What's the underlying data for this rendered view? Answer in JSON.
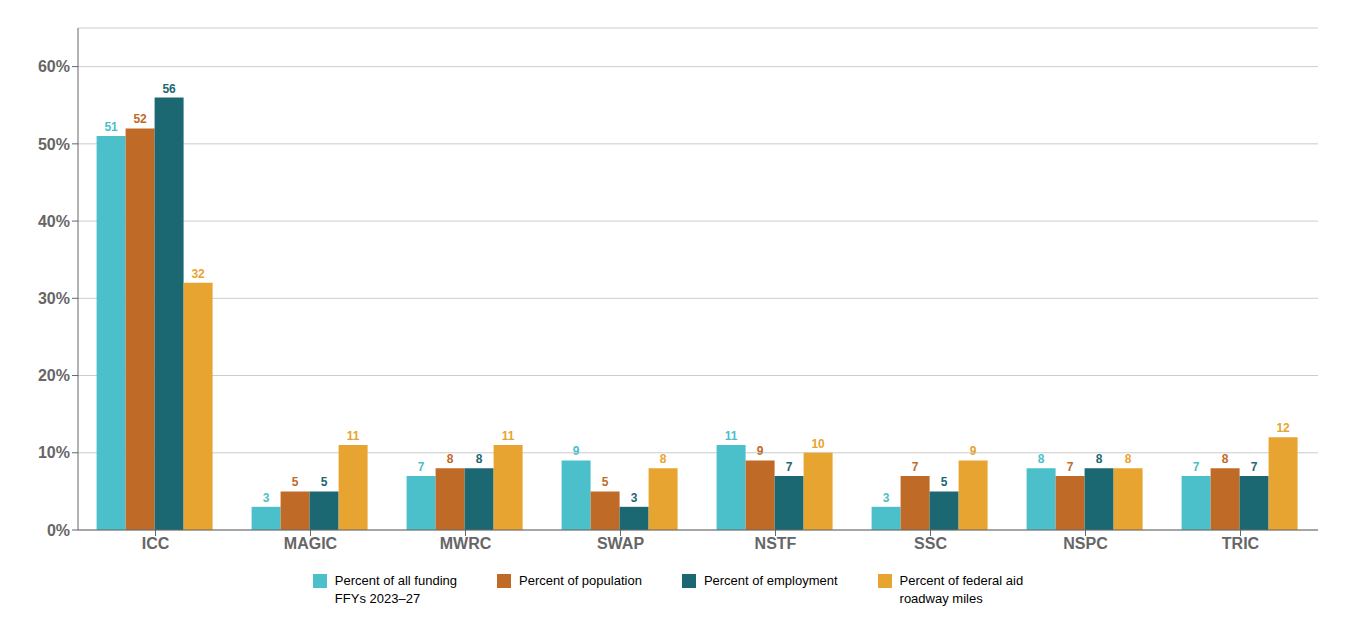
{
  "chart_data": {
    "type": "bar",
    "categories": [
      "ICC",
      "MAGIC",
      "MWRC",
      "SWAP",
      "NSTF",
      "SSC",
      "NSPC",
      "TRIC"
    ],
    "series": [
      {
        "name": "Percent of all funding\nFFYs 2023–27",
        "color": "#4BBFCA",
        "values": [
          51,
          3,
          7,
          9,
          11,
          3,
          8,
          7
        ]
      },
      {
        "name": "Percent of population",
        "color": "#C06A28",
        "values": [
          52,
          5,
          8,
          5,
          9,
          7,
          7,
          8
        ]
      },
      {
        "name": "Percent of employment",
        "color": "#1B6873",
        "values": [
          56,
          5,
          8,
          3,
          7,
          5,
          8,
          7
        ]
      },
      {
        "name": "Percent of federal aid\nroadway miles",
        "color": "#E8A430",
        "values": [
          32,
          11,
          11,
          8,
          10,
          9,
          8,
          12
        ]
      }
    ],
    "ylim": [
      0,
      65
    ],
    "yticks": [
      {
        "value": 0,
        "label": "0%"
      },
      {
        "value": 10,
        "label": "10%"
      },
      {
        "value": 20,
        "label": "20%"
      },
      {
        "value": 30,
        "label": "30%"
      },
      {
        "value": 40,
        "label": "40%"
      },
      {
        "value": 50,
        "label": "50%"
      },
      {
        "value": 60,
        "label": "60%"
      }
    ],
    "grid": true,
    "data_labels": true,
    "legend": "bottom"
  }
}
